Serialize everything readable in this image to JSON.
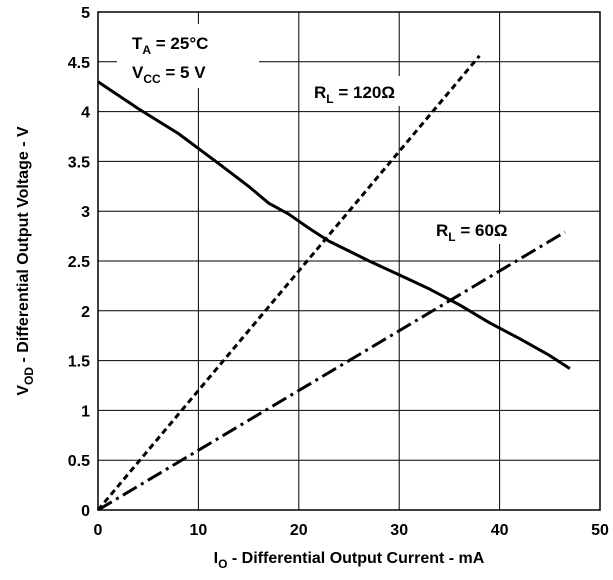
{
  "chart_data": {
    "type": "line",
    "x_axis": {
      "label_main": "I",
      "label_sub": "O",
      "label_rest": " - Differential Output Current - mA",
      "range": [
        0,
        50
      ],
      "ticks": [
        0,
        10,
        20,
        30,
        40,
        50
      ],
      "tick_labels": [
        "0",
        "10",
        "20",
        "30",
        "40",
        "50"
      ]
    },
    "y_axis": {
      "label_main": "V",
      "label_sub": "OD",
      "label_rest": " - Differential Output Voltage - V",
      "range": [
        0,
        5
      ],
      "ticks": [
        0,
        0.5,
        1,
        1.5,
        2,
        2.5,
        3,
        3.5,
        4,
        4.5,
        5
      ],
      "tick_labels": [
        "0",
        "0.5",
        "1",
        "1.5",
        "2",
        "2.5",
        "3",
        "3.5",
        "4",
        "4.5",
        "5"
      ]
    },
    "grid": true,
    "conditions": {
      "ta_main": "T",
      "ta_sub": "A",
      "ta_rest": " = 25°C",
      "vcc_main": "V",
      "vcc_sub": "CC",
      "vcc_rest": " = 5 V"
    },
    "series": [
      {
        "style": "solid",
        "x": [
          0,
          4,
          8,
          12,
          15,
          17,
          19,
          21,
          23,
          25,
          27,
          30,
          33,
          36,
          39,
          42,
          45,
          47
        ],
        "y": [
          4.3,
          4.03,
          3.78,
          3.48,
          3.25,
          3.08,
          2.97,
          2.83,
          2.7,
          2.6,
          2.5,
          2.36,
          2.22,
          2.06,
          1.88,
          1.72,
          1.55,
          1.42
        ]
      },
      {
        "style": "dashed",
        "annotation_main": "R",
        "annotation_sub": "L",
        "annotation_rest": " = 120Ω",
        "x": [
          0,
          38
        ],
        "y": [
          0,
          4.56
        ]
      },
      {
        "style": "dashdot",
        "annotation_main": "R",
        "annotation_sub": "L",
        "annotation_rest": " = 60Ω",
        "x": [
          0,
          46.5
        ],
        "y": [
          0,
          2.79
        ]
      }
    ]
  }
}
